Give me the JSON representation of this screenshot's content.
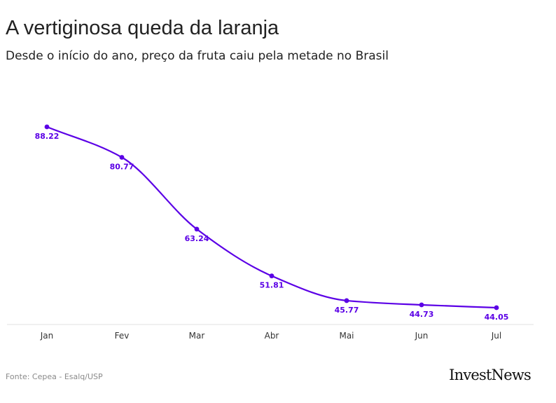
{
  "header": {
    "title": "A vertiginosa queda da laranja",
    "subtitle": "Desde o início do ano, preço da fruta caiu pela metade no Brasil"
  },
  "chart_data": {
    "type": "line",
    "categories": [
      "Jan",
      "Fev",
      "Mar",
      "Abr",
      "Mai",
      "Jun",
      "Jul"
    ],
    "values": [
      88.22,
      80.77,
      63.24,
      51.81,
      45.77,
      44.73,
      44.05
    ],
    "data_labels": [
      "88.22",
      "80.77",
      "63.24",
      "51.81",
      "45.77",
      "44.73",
      "44.05"
    ],
    "title": "A vertiginosa queda da laranja",
    "subtitle": "Desde o início do ano, preço da fruta caiu pela metade no Brasil",
    "xlabel": "",
    "ylabel": "",
    "grid": false,
    "y_axis_visible": false,
    "color": "#5b00e6"
  },
  "footer": {
    "source": "Fonte: Cepea - Esalq/USP",
    "brand": "InvestNews"
  }
}
